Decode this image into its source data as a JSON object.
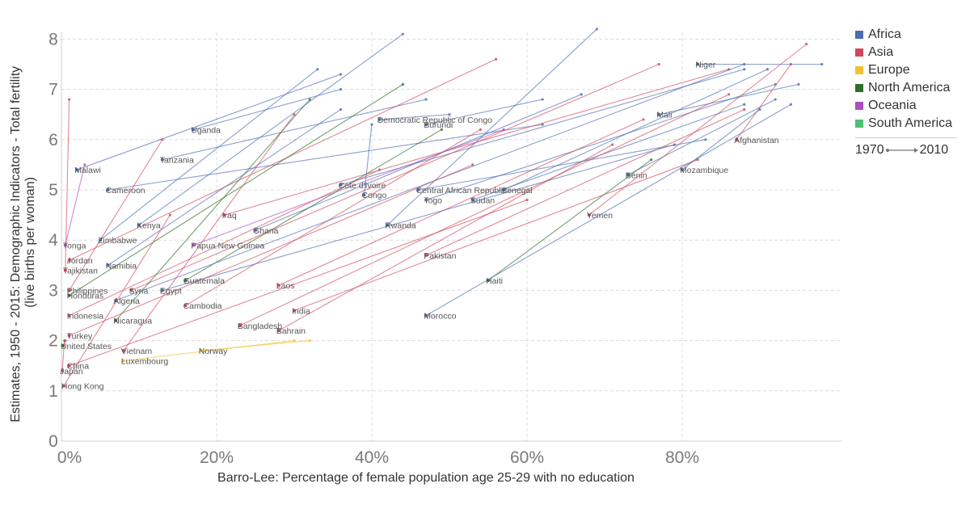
{
  "legend": {
    "items": [
      {
        "label": "Africa",
        "color": "#4c6cb3"
      },
      {
        "label": "Asia",
        "color": "#d1495b"
      },
      {
        "label": "Europe",
        "color": "#f2c230"
      },
      {
        "label": "North America",
        "color": "#2e6f2a"
      },
      {
        "label": "Oceania",
        "color": "#a94fc2"
      },
      {
        "label": "South America",
        "color": "#4fbf74"
      }
    ],
    "time_start": "1970",
    "time_end": "2010"
  },
  "chart_data": {
    "type": "scatter",
    "xlabel": "Barro-Lee: Percentage of female population age 25-29 with no education",
    "ylabel": "Estimates, 1950 - 2015: Demographic Indicators - Total fertility (live births per woman)",
    "xlim": [
      0,
      100
    ],
    "ylim": [
      0,
      8.2
    ],
    "x_ticks": [
      "0%",
      "20%",
      "40%",
      "60%",
      "80%"
    ],
    "y_ticks": [
      "0",
      "1",
      "2",
      "3",
      "4",
      "5",
      "6",
      "7",
      "8"
    ],
    "grid": true,
    "legend_position": "right",
    "series": [
      {
        "name": "Niger",
        "region": "Africa",
        "x": [
          98,
          82
        ],
        "y": [
          7.5,
          7.5
        ]
      },
      {
        "name": "Mali",
        "region": "Africa",
        "x": [
          95,
          77
        ],
        "y": [
          7.1,
          6.5
        ]
      },
      {
        "name": "Democratic Republic of Congo",
        "region": "Africa",
        "x": [
          50,
          41
        ],
        "y": [
          6.5,
          6.4
        ]
      },
      {
        "name": "Burundi",
        "region": "Africa",
        "x": [
          62,
          47
        ],
        "y": [
          6.8,
          6.3
        ]
      },
      {
        "name": "Uganda",
        "region": "Africa",
        "x": [
          36,
          17
        ],
        "y": [
          7.0,
          6.2
        ]
      },
      {
        "name": "Afghanistan",
        "region": "Asia",
        "x": [
          94,
          87
        ],
        "y": [
          7.5,
          6.0
        ]
      },
      {
        "name": "Mozambique",
        "region": "Africa",
        "x": [
          90,
          80
        ],
        "y": [
          6.6,
          5.4
        ]
      },
      {
        "name": "Benin",
        "region": "Africa",
        "x": [
          92,
          73
        ],
        "y": [
          6.8,
          5.3
        ]
      },
      {
        "name": "Tanzania",
        "region": "Africa",
        "x": [
          47,
          13
        ],
        "y": [
          6.8,
          5.6
        ]
      },
      {
        "name": "Malawi",
        "region": "Africa",
        "x": [
          36,
          2
        ],
        "y": [
          7.3,
          5.4
        ]
      },
      {
        "name": "Cameroon",
        "region": "Africa",
        "x": [
          62,
          6
        ],
        "y": [
          6.3,
          5.0
        ]
      },
      {
        "name": "Cote d'Ivoire",
        "region": "Africa",
        "x": [
          88,
          36
        ],
        "y": [
          7.4,
          5.1
        ]
      },
      {
        "name": "Central African Republic",
        "region": "Africa",
        "x": [
          83,
          46
        ],
        "y": [
          6.0,
          5.0
        ]
      },
      {
        "name": "Congo",
        "region": "Africa",
        "x": [
          40,
          39
        ],
        "y": [
          6.3,
          4.9
        ]
      },
      {
        "name": "Togo",
        "region": "Africa",
        "x": [
          92,
          47
        ],
        "y": [
          7.1,
          4.8
        ]
      },
      {
        "name": "Sudan",
        "region": "Africa",
        "x": [
          88,
          53
        ],
        "y": [
          6.7,
          4.8
        ]
      },
      {
        "name": "Senegal",
        "region": "Africa",
        "x": [
          91,
          57
        ],
        "y": [
          7.4,
          5.0
        ]
      },
      {
        "name": "Yemen",
        "region": "Asia",
        "x": [
          96,
          68
        ],
        "y": [
          7.9,
          4.5
        ]
      },
      {
        "name": "Iraq",
        "region": "Asia",
        "x": [
          86,
          21
        ],
        "y": [
          7.4,
          4.5
        ]
      },
      {
        "name": "Rwanda",
        "region": "Africa",
        "x": [
          69,
          42
        ],
        "y": [
          8.2,
          4.3
        ]
      },
      {
        "name": "Kenya",
        "region": "Africa",
        "x": [
          44,
          10
        ],
        "y": [
          8.1,
          4.3
        ]
      },
      {
        "name": "Ghana",
        "region": "Africa",
        "x": [
          67,
          25
        ],
        "y": [
          6.9,
          4.2
        ]
      },
      {
        "name": "Zimbabwe",
        "region": "Africa",
        "x": [
          33,
          5
        ],
        "y": [
          7.4,
          4.0
        ]
      },
      {
        "name": "Papua New Guinea",
        "region": "Oceania",
        "x": [
          57,
          17
        ],
        "y": [
          6.2,
          3.9
        ]
      },
      {
        "name": "Pakistan",
        "region": "Asia",
        "x": [
          88,
          47
        ],
        "y": [
          6.6,
          3.7
        ]
      },
      {
        "name": "Tonga",
        "region": "Oceania",
        "x": [
          3,
          0.5
        ],
        "y": [
          5.5,
          3.9
        ]
      },
      {
        "name": "Jordan",
        "region": "Asia",
        "x": [
          56,
          1
        ],
        "y": [
          7.6,
          3.6
        ]
      },
      {
        "name": "Namibia",
        "region": "Africa",
        "x": [
          36,
          6
        ],
        "y": [
          6.6,
          3.5
        ]
      },
      {
        "name": "Tajikistan",
        "region": "Asia",
        "x": [
          1,
          0.5
        ],
        "y": [
          6.8,
          3.4
        ]
      },
      {
        "name": "Guatemala",
        "region": "North America",
        "x": [
          49,
          16
        ],
        "y": [
          6.2,
          3.2
        ]
      },
      {
        "name": "Haiti",
        "region": "North America",
        "x": [
          76,
          55
        ],
        "y": [
          5.6,
          3.2
        ]
      },
      {
        "name": "Laos",
        "region": "Asia",
        "x": [
          75,
          28
        ],
        "y": [
          6.4,
          3.1
        ]
      },
      {
        "name": "Syria",
        "region": "Asia",
        "x": [
          77,
          9
        ],
        "y": [
          7.5,
          3.0
        ]
      },
      {
        "name": "Egypt",
        "region": "Africa",
        "x": [
          79,
          13
        ],
        "y": [
          5.9,
          3.0
        ]
      },
      {
        "name": "Philippines",
        "region": "Asia",
        "x": [
          13,
          1
        ],
        "y": [
          6.0,
          3.0
        ]
      },
      {
        "name": "Honduras",
        "region": "North America",
        "x": [
          44,
          1
        ],
        "y": [
          7.1,
          2.9
        ]
      },
      {
        "name": "Algeria",
        "region": "Africa",
        "x": [
          88,
          7
        ],
        "y": [
          7.5,
          2.8
        ]
      },
      {
        "name": "Cambodia",
        "region": "Asia",
        "x": [
          54,
          16
        ],
        "y": [
          6.2,
          2.7
        ]
      },
      {
        "name": "India",
        "region": "Asia",
        "x": [
          82,
          30
        ],
        "y": [
          5.6,
          2.6
        ]
      },
      {
        "name": "Morocco",
        "region": "Africa",
        "x": [
          94,
          47
        ],
        "y": [
          6.7,
          2.5
        ]
      },
      {
        "name": "Indonesia",
        "region": "Asia",
        "x": [
          41,
          1
        ],
        "y": [
          5.4,
          2.5
        ]
      },
      {
        "name": "Nicaragua",
        "region": "North America",
        "x": [
          32,
          7
        ],
        "y": [
          6.8,
          2.4
        ]
      },
      {
        "name": "Bangladesh",
        "region": "Asia",
        "x": [
          86,
          23
        ],
        "y": [
          6.9,
          2.3
        ]
      },
      {
        "name": "Turkey",
        "region": "Asia",
        "x": [
          53,
          1
        ],
        "y": [
          5.5,
          2.1
        ]
      },
      {
        "name": "Bahrain",
        "region": "Asia",
        "x": [
          71,
          28
        ],
        "y": [
          5.9,
          2.2
        ]
      },
      {
        "name": "United States",
        "region": "North America",
        "x": [
          0.5,
          0.2
        ],
        "y": [
          2.0,
          1.9
        ]
      },
      {
        "name": "Vietnam",
        "region": "Asia",
        "x": [
          30,
          8
        ],
        "y": [
          6.5,
          1.8
        ]
      },
      {
        "name": "Norway",
        "region": "Europe",
        "x": [
          32,
          18
        ],
        "y": [
          2.0,
          1.8
        ]
      },
      {
        "name": "China",
        "region": "Asia",
        "x": [
          60,
          1
        ],
        "y": [
          4.8,
          1.5
        ]
      },
      {
        "name": "Luxembourg",
        "region": "Europe",
        "x": [
          30,
          8
        ],
        "y": [
          2.0,
          1.6
        ]
      },
      {
        "name": "Japan",
        "region": "Asia",
        "x": [
          0.4,
          0.1
        ],
        "y": [
          2.0,
          1.4
        ]
      },
      {
        "name": "Hong Kong",
        "region": "Asia",
        "x": [
          14,
          0.3
        ],
        "y": [
          4.5,
          1.1
        ]
      }
    ]
  }
}
